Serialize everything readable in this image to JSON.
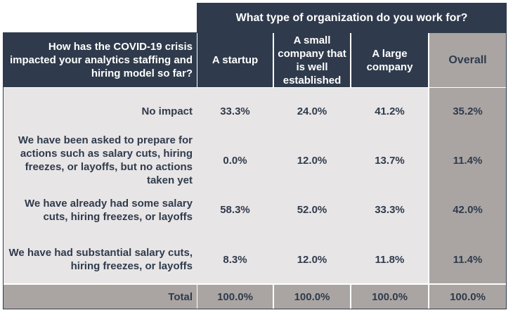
{
  "header": {
    "question_group": "What type of organization do you work for?",
    "row_question": "How has the COVID-19 crisis impacted your analytics staffing and hiring model so far?",
    "columns": [
      "A startup",
      "A small company that is well established",
      "A large company",
      "Overall"
    ]
  },
  "rows": [
    {
      "label": "No impact",
      "values": [
        "33.3%",
        "24.0%",
        "41.2%",
        "35.2%"
      ]
    },
    {
      "label": "We have been asked to prepare for actions such as salary cuts, hiring freezes, or layoffs, but no actions taken yet",
      "values": [
        "0.0%",
        "12.0%",
        "13.7%",
        "11.4%"
      ]
    },
    {
      "label": "We have already had some salary cuts, hiring freezes, or layoffs",
      "values": [
        "58.3%",
        "52.0%",
        "33.3%",
        "42.0%"
      ]
    },
    {
      "label": "We have had substantial salary cuts, hiring freezes, or layoffs",
      "values": [
        "8.3%",
        "12.0%",
        "11.8%",
        "11.4%"
      ]
    }
  ],
  "total": {
    "label": "Total",
    "values": [
      "100.0%",
      "100.0%",
      "100.0%",
      "100.0%"
    ]
  }
}
